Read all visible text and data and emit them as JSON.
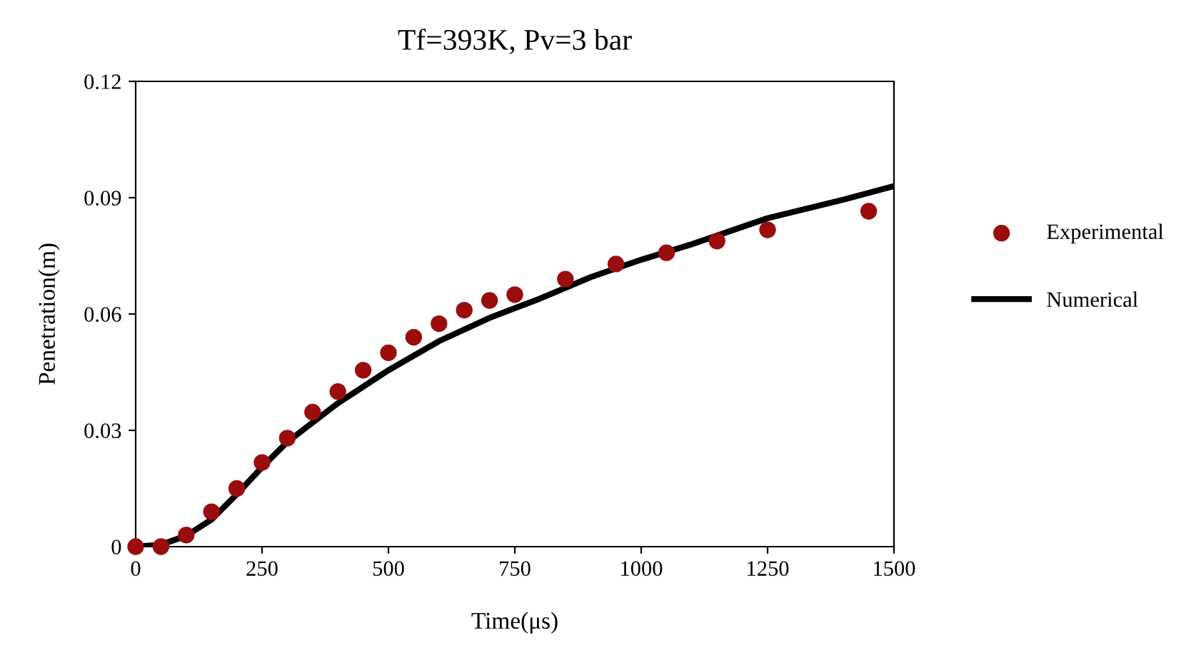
{
  "chart_data": {
    "type": "scatter",
    "title": "Tf=393K, Pv=3 bar",
    "xlabel": "Time(μs)",
    "ylabel": "Penetration(m)",
    "xlim": [
      0,
      1500
    ],
    "xticks": [
      0,
      250,
      500,
      750,
      1000,
      1250,
      1500
    ],
    "ylim": [
      0,
      0.12
    ],
    "yticks": [
      0,
      0.03,
      0.06,
      0.09,
      0.12
    ],
    "legend": "right",
    "grid": false,
    "series": [
      {
        "name": "Experimental",
        "marker": "circle",
        "color": "#9b0d0d",
        "x": [
          0,
          50,
          100,
          150,
          200,
          250,
          300,
          350,
          400,
          450,
          500,
          550,
          600,
          650,
          700,
          750,
          850,
          950,
          1050,
          1150,
          1250,
          1450
        ],
        "values": [
          0,
          0,
          0.003,
          0.009,
          0.015,
          0.0217,
          0.028,
          0.0347,
          0.04,
          0.0455,
          0.05,
          0.054,
          0.0575,
          0.061,
          0.0635,
          0.065,
          0.069,
          0.0729,
          0.0758,
          0.0788,
          0.0817,
          0.0865
        ]
      },
      {
        "name": "Numerical",
        "type": "line",
        "color": "#000000",
        "x": [
          0,
          50,
          100,
          150,
          200,
          250,
          300,
          400,
          500,
          600,
          700,
          800,
          900,
          1000,
          1100,
          1250,
          1400,
          1500
        ],
        "values": [
          0,
          0.0005,
          0.0028,
          0.007,
          0.0135,
          0.0205,
          0.027,
          0.037,
          0.0455,
          0.053,
          0.059,
          0.064,
          0.0695,
          0.074,
          0.078,
          0.0847,
          0.0895,
          0.093
        ]
      }
    ]
  }
}
